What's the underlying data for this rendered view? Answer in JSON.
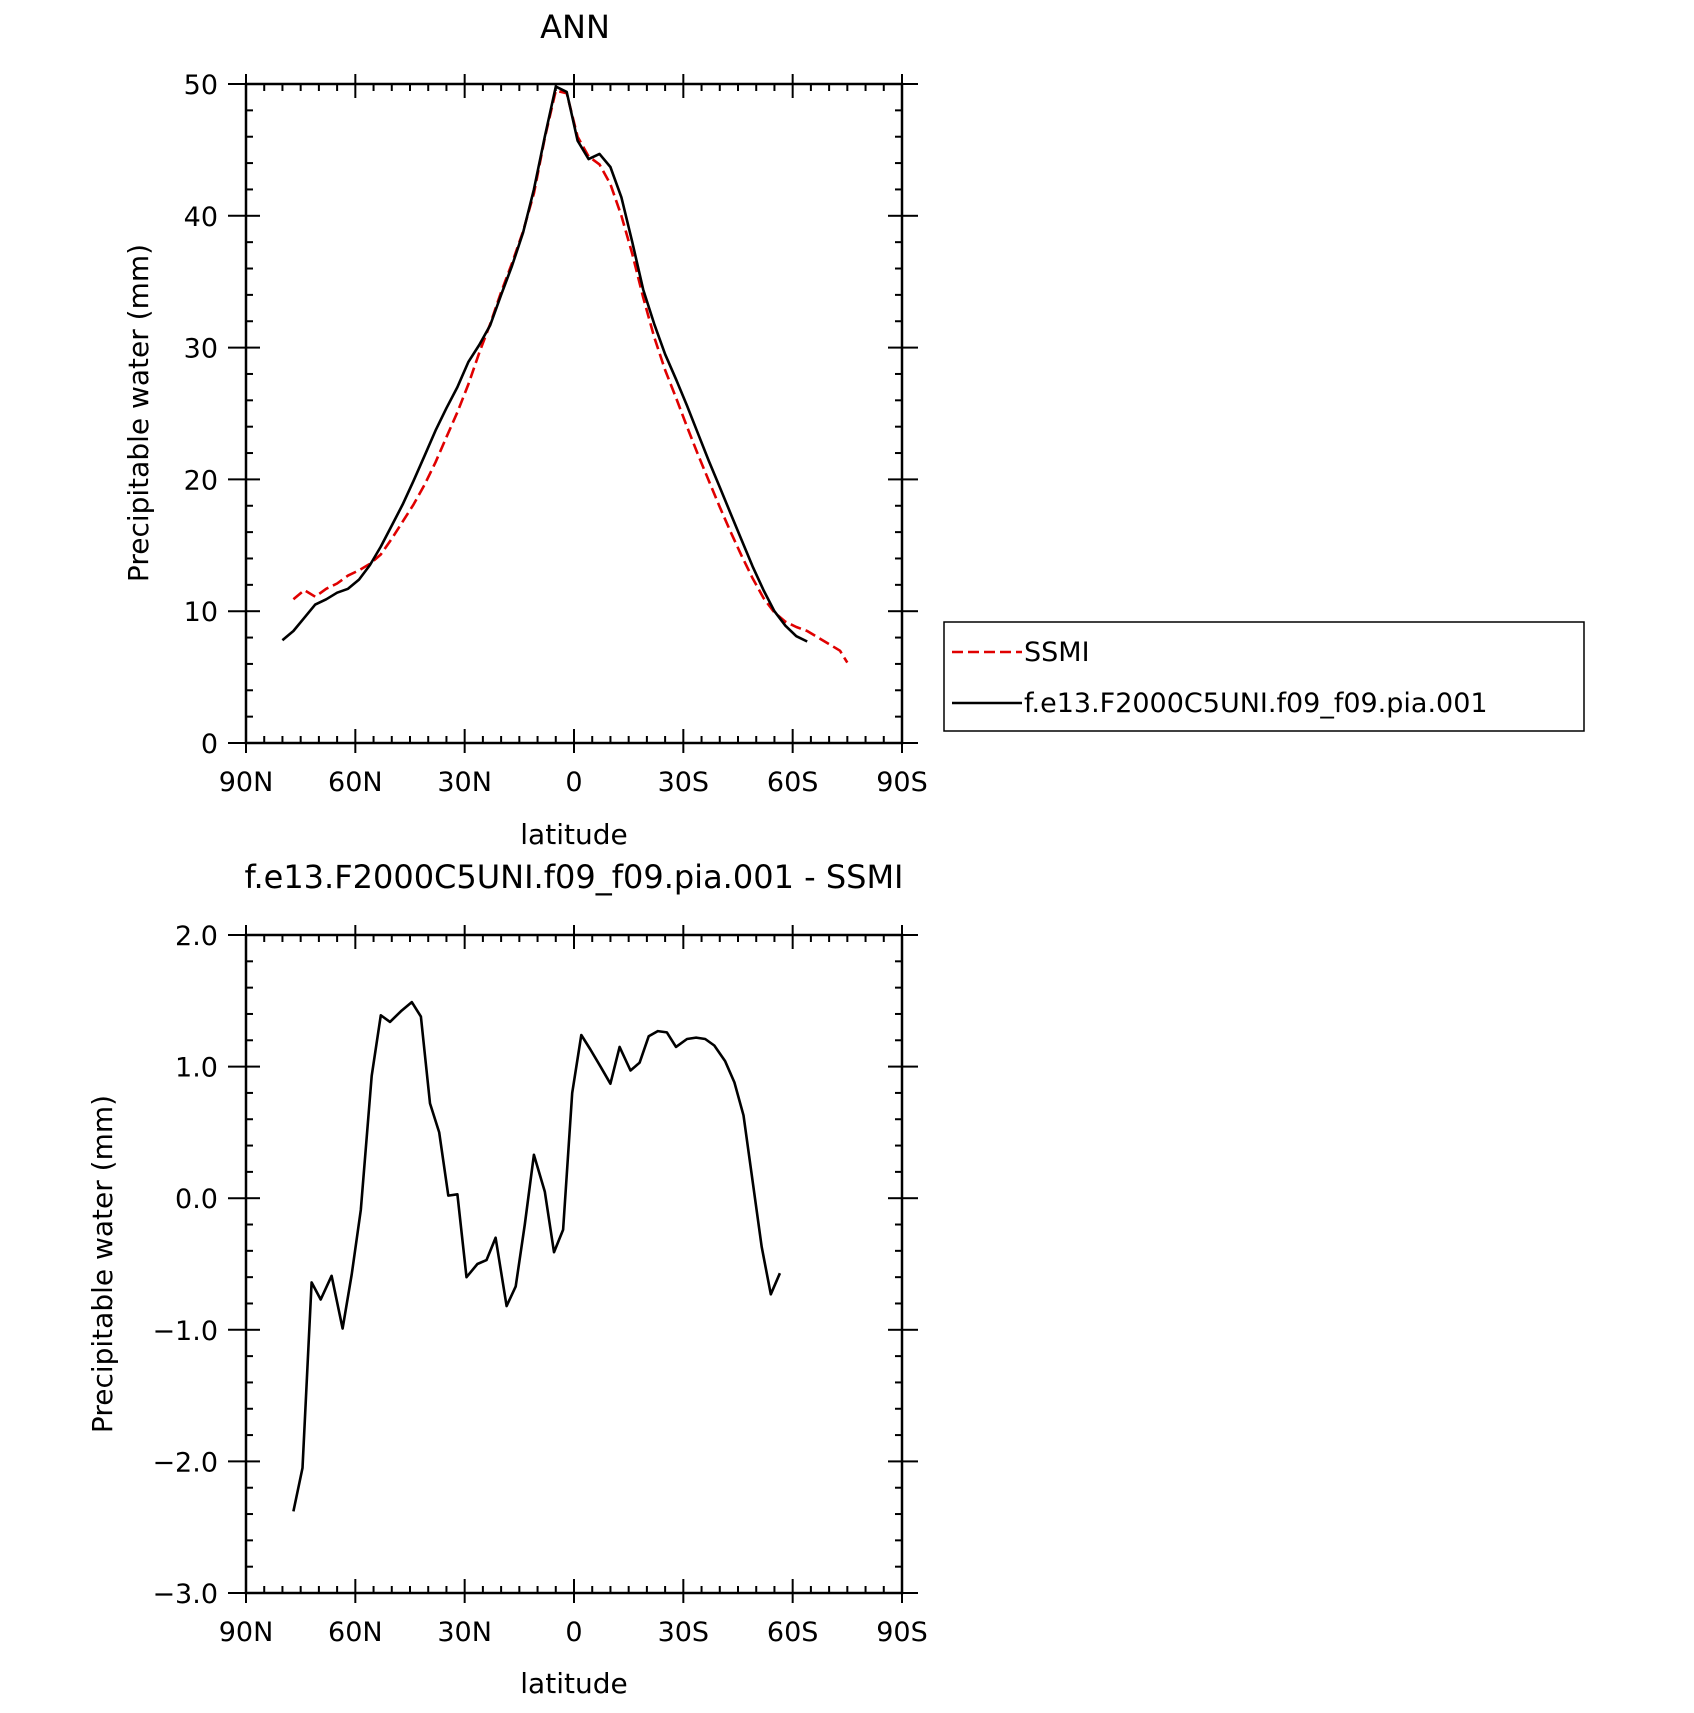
{
  "chart_data": [
    {
      "type": "line",
      "title": "ANN",
      "xlabel": "latitude",
      "ylabel": "Precipitable water (mm)",
      "xlim": [
        90,
        -90
      ],
      "ylim": [
        0,
        50
      ],
      "x_ticks": [
        {
          "value": 90,
          "label": "90N"
        },
        {
          "value": 60,
          "label": "60N"
        },
        {
          "value": 30,
          "label": "30N"
        },
        {
          "value": 0,
          "label": "0"
        },
        {
          "value": -30,
          "label": "30S"
        },
        {
          "value": -60,
          "label": "60S"
        },
        {
          "value": -90,
          "label": "90S"
        }
      ],
      "y_ticks": [
        {
          "value": 0,
          "label": "0"
        },
        {
          "value": 10,
          "label": "10"
        },
        {
          "value": 20,
          "label": "20"
        },
        {
          "value": 30,
          "label": "30"
        },
        {
          "value": 40,
          "label": "40"
        },
        {
          "value": 50,
          "label": "50"
        }
      ],
      "legend": {
        "position": "right",
        "entries": [
          {
            "label": "SSMI",
            "color": "#e00000",
            "dash": "dashed"
          },
          {
            "label": "f.e13.F2000C5UNI.f09_f09.pia.001",
            "color": "#000000",
            "dash": "solid"
          }
        ]
      },
      "series": [
        {
          "name": "SSMI",
          "color": "#e00000",
          "dash": "dashed",
          "points": [
            [
              77,
              10.9
            ],
            [
              74,
              11.6
            ],
            [
              71,
              11.1
            ],
            [
              68,
              11.7
            ],
            [
              65,
              12.1
            ],
            [
              62,
              12.7
            ],
            [
              59,
              13.1
            ],
            [
              56,
              13.6
            ],
            [
              53,
              14.3
            ],
            [
              50,
              15.5
            ],
            [
              47,
              16.8
            ],
            [
              44,
              18.1
            ],
            [
              41,
              19.6
            ],
            [
              38,
              21.3
            ],
            [
              35,
              23.2
            ],
            [
              32,
              25.1
            ],
            [
              29,
              27.2
            ],
            [
              26,
              29.6
            ],
            [
              23,
              31.8
            ],
            [
              20,
              34.2
            ],
            [
              17,
              36.4
            ],
            [
              14,
              38.8
            ],
            [
              11,
              41.7
            ],
            [
              8,
              45.9
            ],
            [
              5,
              49.5
            ],
            [
              2,
              49.3
            ],
            [
              -1,
              46.0
            ],
            [
              -4,
              44.5
            ],
            [
              -7,
              43.9
            ],
            [
              -10,
              42.4
            ],
            [
              -13,
              40.0
            ],
            [
              -16,
              37.1
            ],
            [
              -19,
              33.8
            ],
            [
              -22,
              30.8
            ],
            [
              -25,
              28.3
            ],
            [
              -28,
              26.2
            ],
            [
              -31,
              24.0
            ],
            [
              -34,
              21.9
            ],
            [
              -37,
              19.9
            ],
            [
              -40,
              17.9
            ],
            [
              -43,
              16.0
            ],
            [
              -46,
              14.2
            ],
            [
              -49,
              12.5
            ],
            [
              -52,
              11.0
            ],
            [
              -55,
              9.9
            ],
            [
              -58,
              9.2
            ],
            [
              -61,
              8.8
            ],
            [
              -64,
              8.5
            ],
            [
              -67,
              8.0
            ],
            [
              -70,
              7.5
            ],
            [
              -73,
              7.0
            ],
            [
              -75,
              6.1
            ]
          ]
        },
        {
          "name": "f.e13.F2000C5UNI.f09_f09.pia.001",
          "color": "#000000",
          "dash": "solid",
          "points": [
            [
              80,
              7.8
            ],
            [
              77,
              8.5
            ],
            [
              74,
              9.5
            ],
            [
              71,
              10.5
            ],
            [
              68,
              10.9
            ],
            [
              65,
              11.4
            ],
            [
              62,
              11.7
            ],
            [
              59,
              12.4
            ],
            [
              56,
              13.5
            ],
            [
              53,
              14.9
            ],
            [
              50,
              16.5
            ],
            [
              47,
              18.1
            ],
            [
              44,
              19.9
            ],
            [
              41,
              21.8
            ],
            [
              38,
              23.7
            ],
            [
              35,
              25.4
            ],
            [
              32,
              27.0
            ],
            [
              29,
              28.9
            ],
            [
              26,
              30.2
            ],
            [
              23,
              31.7
            ],
            [
              20,
              34.0
            ],
            [
              17,
              36.2
            ],
            [
              14,
              38.7
            ],
            [
              11,
              42.0
            ],
            [
              8,
              46.0
            ],
            [
              5,
              49.8
            ],
            [
              2,
              49.4
            ],
            [
              -1,
              45.7
            ],
            [
              -4,
              44.3
            ],
            [
              -7,
              44.7
            ],
            [
              -10,
              43.7
            ],
            [
              -13,
              41.4
            ],
            [
              -16,
              38.0
            ],
            [
              -19,
              34.4
            ],
            [
              -22,
              31.8
            ],
            [
              -25,
              29.5
            ],
            [
              -28,
              27.6
            ],
            [
              -31,
              25.6
            ],
            [
              -34,
              23.5
            ],
            [
              -37,
              21.4
            ],
            [
              -40,
              19.4
            ],
            [
              -43,
              17.4
            ],
            [
              -46,
              15.4
            ],
            [
              -49,
              13.4
            ],
            [
              -52,
              11.6
            ],
            [
              -55,
              10.0
            ],
            [
              -58,
              8.9
            ],
            [
              -61,
              8.1
            ],
            [
              -64,
              7.7
            ]
          ]
        }
      ]
    },
    {
      "type": "line",
      "title": "f.e13.F2000C5UNI.f09_f09.pia.001 - SSMI",
      "xlabel": "latitude",
      "ylabel": "Precipitable water (mm)",
      "xlim": [
        90,
        -90
      ],
      "ylim": [
        -3.0,
        2.0
      ],
      "x_ticks": [
        {
          "value": 90,
          "label": "90N"
        },
        {
          "value": 60,
          "label": "60N"
        },
        {
          "value": 30,
          "label": "30N"
        },
        {
          "value": 0,
          "label": "0"
        },
        {
          "value": -30,
          "label": "30S"
        },
        {
          "value": -60,
          "label": "60S"
        },
        {
          "value": -90,
          "label": "90S"
        }
      ],
      "y_ticks": [
        {
          "value": -3.0,
          "label": "−3.0"
        },
        {
          "value": -2.0,
          "label": "−2.0"
        },
        {
          "value": -1.0,
          "label": "−1.0"
        },
        {
          "value": 0.0,
          "label": "0.0"
        },
        {
          "value": 1.0,
          "label": "1.0"
        },
        {
          "value": 2.0,
          "label": "2.0"
        }
      ],
      "series": [
        {
          "color": "#000000",
          "dash": "solid",
          "points": [
            [
              77,
              -2.38
            ],
            [
              74.5,
              -2.05
            ],
            [
              72,
              -0.64
            ],
            [
              69.5,
              -0.77
            ],
            [
              66.5,
              -0.59
            ],
            [
              63.5,
              -0.99
            ],
            [
              61,
              -0.58
            ],
            [
              58.5,
              -0.09
            ],
            [
              55.5,
              0.93
            ],
            [
              53,
              1.39
            ],
            [
              50.5,
              1.34
            ],
            [
              47.5,
              1.42
            ],
            [
              44.5,
              1.49
            ],
            [
              42,
              1.38
            ],
            [
              39.5,
              0.72
            ],
            [
              37,
              0.5
            ],
            [
              34.5,
              0.02
            ],
            [
              32,
              0.03
            ],
            [
              29.5,
              -0.6
            ],
            [
              26.5,
              -0.5
            ],
            [
              24,
              -0.47
            ],
            [
              21.5,
              -0.3
            ],
            [
              18.5,
              -0.82
            ],
            [
              16,
              -0.67
            ],
            [
              13.5,
              -0.2
            ],
            [
              11,
              0.33
            ],
            [
              8,
              0.05
            ],
            [
              5.5,
              -0.41
            ],
            [
              3,
              -0.24
            ],
            [
              0.5,
              0.8
            ],
            [
              -2,
              1.24
            ],
            [
              -4.5,
              1.13
            ],
            [
              -7.5,
              0.99
            ],
            [
              -10,
              0.87
            ],
            [
              -12.5,
              1.15
            ],
            [
              -15.5,
              0.97
            ],
            [
              -18,
              1.03
            ],
            [
              -20.5,
              1.23
            ],
            [
              -23,
              1.27
            ],
            [
              -25.5,
              1.26
            ],
            [
              -28,
              1.15
            ],
            [
              -31,
              1.21
            ],
            [
              -33.5,
              1.22
            ],
            [
              -36,
              1.21
            ],
            [
              -38.5,
              1.16
            ],
            [
              -41.5,
              1.04
            ],
            [
              -44,
              0.88
            ],
            [
              -46.5,
              0.63
            ],
            [
              -49,
              0.13
            ],
            [
              -51.5,
              -0.37
            ],
            [
              -54,
              -0.73
            ],
            [
              -56.5,
              -0.57
            ]
          ]
        }
      ]
    }
  ]
}
